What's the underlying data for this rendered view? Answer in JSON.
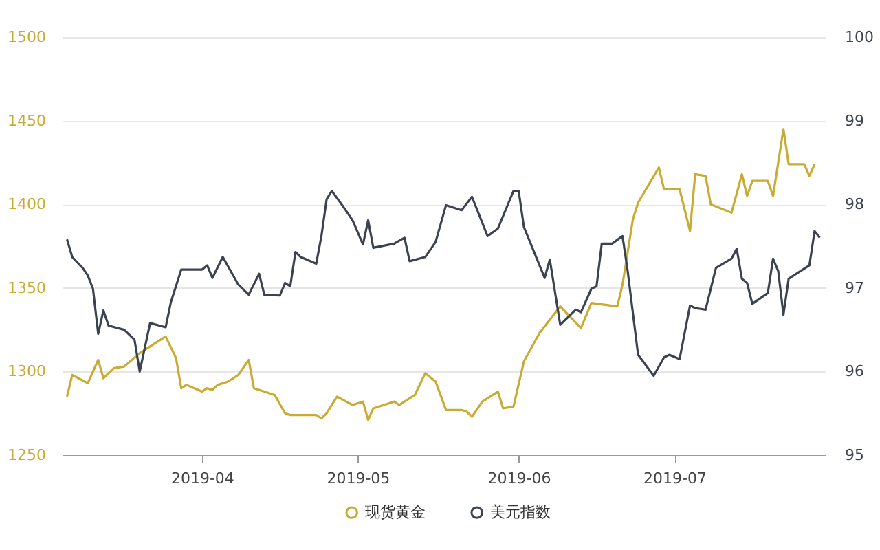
{
  "chart_data": {
    "type": "line",
    "xlim": [
      "2019-03-05",
      "2019-07-30"
    ],
    "xticks": [
      "2019-04",
      "2019-05",
      "2019-06",
      "2019-07"
    ],
    "ylim": [
      1250,
      1500
    ],
    "yticks": [
      1250,
      1300,
      1350,
      1400,
      1450,
      1500
    ],
    "y2lim": [
      95,
      100
    ],
    "y2ticks": [
      95,
      96,
      97,
      98,
      99,
      100
    ],
    "grid": "y",
    "legend": "bottom",
    "series": [
      {
        "name": "现货黄金",
        "color": "#c9aa32",
        "x": [
          "2019-03-06",
          "2019-03-07",
          "2019-03-10",
          "2019-03-12",
          "2019-03-13",
          "2019-03-15",
          "2019-03-17",
          "2019-03-20",
          "2019-03-22",
          "2019-03-25",
          "2019-03-27",
          "2019-03-28",
          "2019-03-29",
          "2019-04-01",
          "2019-04-02",
          "2019-04-03",
          "2019-04-04",
          "2019-04-06",
          "2019-04-08",
          "2019-04-10",
          "2019-04-11",
          "2019-04-13",
          "2019-04-15",
          "2019-04-17",
          "2019-04-18",
          "2019-04-23",
          "2019-04-24",
          "2019-04-25",
          "2019-04-27",
          "2019-04-30",
          "2019-05-02",
          "2019-05-03",
          "2019-05-04",
          "2019-05-08",
          "2019-05-09",
          "2019-05-12",
          "2019-05-14",
          "2019-05-16",
          "2019-05-18",
          "2019-05-21",
          "2019-05-22",
          "2019-05-23",
          "2019-05-25",
          "2019-05-28",
          "2019-05-29",
          "2019-05-31",
          "2019-06-02",
          "2019-06-05",
          "2019-06-09",
          "2019-06-13",
          "2019-06-15",
          "2019-06-20",
          "2019-06-21",
          "2019-06-23",
          "2019-06-24",
          "2019-06-28",
          "2019-06-29",
          "2019-07-02",
          "2019-07-04",
          "2019-07-05",
          "2019-07-07",
          "2019-07-08",
          "2019-07-12",
          "2019-07-14",
          "2019-07-15",
          "2019-07-16",
          "2019-07-19",
          "2019-07-20",
          "2019-07-22",
          "2019-07-23",
          "2019-07-26",
          "2019-07-27",
          "2019-07-28"
        ],
        "values": [
          1285,
          1298,
          1293,
          1307,
          1296,
          1302,
          1303,
          1311,
          1315,
          1321,
          1308,
          1290,
          1292,
          1288,
          1290,
          1289,
          1292,
          1294,
          1298,
          1307,
          1290,
          1288,
          1286,
          1275,
          1274,
          1274,
          1272,
          1275,
          1285,
          1280,
          1282,
          1271,
          1278,
          1282,
          1280,
          1286,
          1299,
          1294,
          1277,
          1277,
          1276,
          1273,
          1282,
          1288,
          1278,
          1279,
          1306,
          1323,
          1339,
          1326,
          1341,
          1339,
          1352,
          1391,
          1401,
          1422,
          1409,
          1409,
          1384,
          1418,
          1417,
          1400,
          1395,
          1418,
          1405,
          1414,
          1414,
          1405,
          1445,
          1424,
          1424,
          1417,
          1424
        ]
      },
      {
        "name": "美元指数",
        "color": "#3c4350",
        "axis": "y2",
        "x": [
          "2019-03-06",
          "2019-03-07",
          "2019-03-09",
          "2019-03-10",
          "2019-03-11",
          "2019-03-12",
          "2019-03-13",
          "2019-03-14",
          "2019-03-17",
          "2019-03-19",
          "2019-03-20",
          "2019-03-22",
          "2019-03-25",
          "2019-03-26",
          "2019-03-28",
          "2019-04-01",
          "2019-04-02",
          "2019-04-03",
          "2019-04-05",
          "2019-04-08",
          "2019-04-10",
          "2019-04-12",
          "2019-04-13",
          "2019-04-16",
          "2019-04-17",
          "2019-04-18",
          "2019-04-19",
          "2019-04-20",
          "2019-04-23",
          "2019-04-24",
          "2019-04-25",
          "2019-04-26",
          "2019-04-28",
          "2019-04-30",
          "2019-05-02",
          "2019-05-03",
          "2019-05-04",
          "2019-05-08",
          "2019-05-10",
          "2019-05-11",
          "2019-05-14",
          "2019-05-16",
          "2019-05-18",
          "2019-05-21",
          "2019-05-23",
          "2019-05-26",
          "2019-05-28",
          "2019-05-31",
          "2019-06-01",
          "2019-06-02",
          "2019-06-06",
          "2019-06-07",
          "2019-06-09",
          "2019-06-12",
          "2019-06-13",
          "2019-06-15",
          "2019-06-16",
          "2019-06-17",
          "2019-06-19",
          "2019-06-21",
          "2019-06-22",
          "2019-06-24",
          "2019-06-27",
          "2019-06-29",
          "2019-06-30",
          "2019-07-02",
          "2019-07-04",
          "2019-07-05",
          "2019-07-07",
          "2019-07-09",
          "2019-07-12",
          "2019-07-13",
          "2019-07-14",
          "2019-07-15",
          "2019-07-16",
          "2019-07-19",
          "2019-07-20",
          "2019-07-21",
          "2019-07-22",
          "2019-07-23",
          "2019-07-27",
          "2019-07-28",
          "2019-07-29"
        ],
        "values": [
          97.58,
          97.37,
          97.24,
          97.15,
          96.99,
          96.45,
          96.73,
          96.55,
          96.5,
          96.38,
          96.0,
          96.58,
          96.53,
          96.83,
          97.22,
          97.22,
          97.27,
          97.12,
          97.37,
          97.04,
          96.92,
          97.17,
          96.92,
          96.91,
          97.06,
          97.02,
          97.43,
          97.37,
          97.29,
          97.62,
          98.06,
          98.16,
          97.99,
          97.81,
          97.52,
          97.81,
          97.48,
          97.53,
          97.6,
          97.32,
          97.37,
          97.55,
          97.99,
          97.93,
          98.09,
          97.62,
          97.71,
          98.16,
          98.16,
          97.73,
          97.12,
          97.34,
          96.56,
          96.74,
          96.71,
          96.99,
          97.02,
          97.53,
          97.53,
          97.62,
          97.2,
          96.2,
          95.95,
          96.17,
          96.2,
          96.15,
          96.79,
          96.76,
          96.74,
          97.24,
          97.35,
          97.47,
          97.11,
          97.06,
          96.81,
          96.94,
          97.35,
          97.2,
          96.68,
          97.11,
          97.27,
          97.68,
          97.6
        ]
      }
    ]
  }
}
